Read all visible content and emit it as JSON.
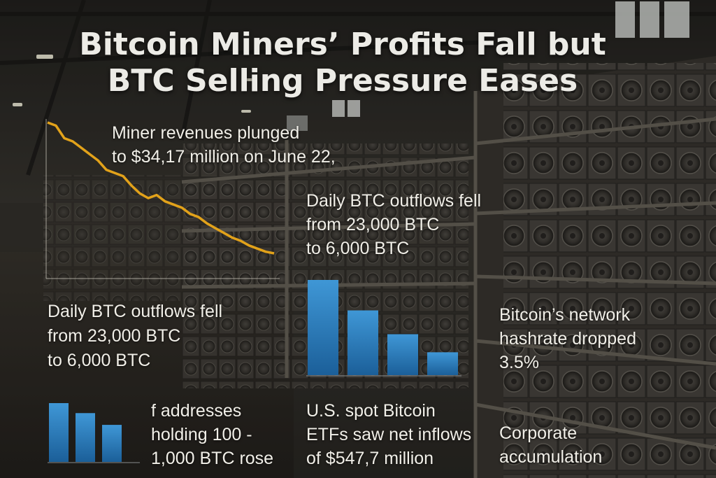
{
  "headline": {
    "line1": "Bitcoin Miners’ Profits Fall but",
    "line2": "BTC Selling Pressure Eases"
  },
  "callouts": {
    "revenue": [
      "Miner revenues plunged",
      "to $34,17 million on June 22,"
    ],
    "outflows_top": [
      "Daily BTC outflows fell",
      "from 23,000 BTC",
      "to 6,000 BTC"
    ],
    "outflows_left": [
      "Daily BTC outflows fell",
      "from 23,000 BTC",
      "to 6,000 BTC"
    ],
    "hashrate": [
      "Bitcoin’s network",
      "hashrate dropped",
      "3.5%"
    ],
    "addresses": [
      "f addresses",
      "holding 100 -",
      "1,000 BTC rose"
    ],
    "etf": [
      "U.S. spot Bitcoin",
      "ETFs saw net inflows",
      "of $547,7 million"
    ],
    "corporate": [
      "Corporate",
      "accumulation"
    ]
  },
  "colors": {
    "line": "#e2a21a",
    "bar_top": "#3f97d6",
    "bar_bottom": "#1b5f99",
    "title": "#ecebe6"
  },
  "chart_data": [
    {
      "type": "line",
      "y": [
        100,
        98,
        90,
        88,
        84,
        80,
        76,
        70,
        68,
        66,
        60,
        55,
        52,
        54,
        50,
        48,
        46,
        42,
        40,
        36,
        33,
        30,
        27,
        25,
        22,
        20,
        18,
        17
      ],
      "xlabel": "",
      "ylabel": ""
    },
    {
      "type": "bar",
      "values": [
        100,
        68,
        43,
        24
      ],
      "xlabel": "",
      "ylabel": ""
    },
    {
      "type": "bar",
      "values": [
        100,
        83,
        63
      ],
      "xlabel": "",
      "ylabel": ""
    }
  ]
}
